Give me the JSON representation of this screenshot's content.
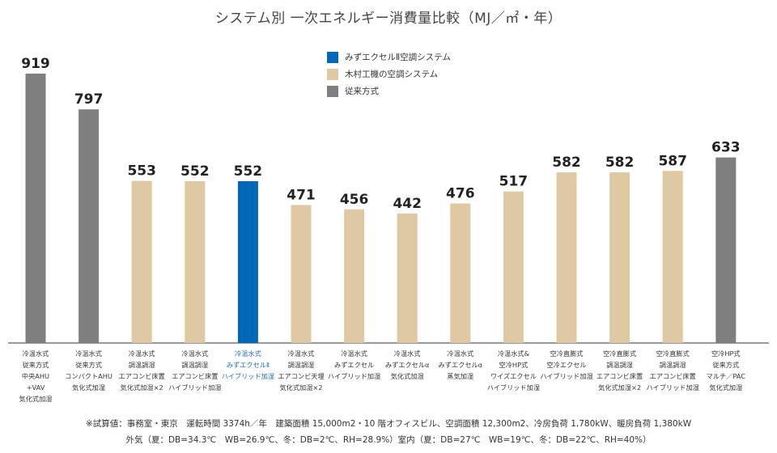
{
  "colors": {
    "highlight": "#0068b7",
    "kimura": "#dfc9a2",
    "conventional": "#7f7f7f",
    "axis": "#333333",
    "highlight_text": "#1a6fb8"
  },
  "legend": [
    {
      "label": "みずエクセルⅡ空調システム",
      "color": "#0068b7"
    },
    {
      "label": "木村工機の空調システム",
      "color": "#dfc9a2"
    },
    {
      "label": "従来方式",
      "color": "#7f7f7f"
    }
  ],
  "notes": [
    "※試算値：事務室・東京　運転時間 3374h／年　建築面積 15,000m2・10 階オフィスビル、空調面積 12,300m2、冷房負荷 1,780kW、暖房負荷 1,380kW",
    "外気（夏：DB=34.3℃　WB=26.9℃、冬：DB=2℃、RH=28.9%）室内（夏：DB=27℃　WB=19℃、冬：DB=22℃、RH=40%）"
  ],
  "chart_data": {
    "type": "bar",
    "title": "システム別 一次エネルギー消費量比較（MJ／㎡・年）",
    "ylim": [
      0,
      1000
    ],
    "grid": false,
    "legend_position": "top-center",
    "bars": [
      {
        "value": 919,
        "group": "conventional",
        "label": [
          "冷温水式",
          "従来方式",
          "中央AHU",
          "+VAV",
          "気化式加湿"
        ]
      },
      {
        "value": 797,
        "group": "conventional",
        "label": [
          "冷温水式",
          "従来方式",
          "コンパクトAHU",
          "気化式加湿"
        ]
      },
      {
        "value": 553,
        "group": "kimura",
        "label": [
          "冷温水式",
          "調温調湿",
          "エアコンビ床置",
          "気化式加湿×2"
        ]
      },
      {
        "value": 552,
        "group": "kimura",
        "label": [
          "冷温水式",
          "調温調湿",
          "エアコンビ床置",
          "ハイブリッド加湿"
        ]
      },
      {
        "value": 552,
        "group": "highlight",
        "label": [
          "冷温水式",
          "みずエクセルⅡ",
          "ハイブリッド加湿"
        ]
      },
      {
        "value": 471,
        "group": "kimura",
        "label": [
          "冷温水式",
          "調温調湿",
          "エアコンビ天埋",
          "気化式加湿×2"
        ]
      },
      {
        "value": 456,
        "group": "kimura",
        "label": [
          "冷温水式",
          "みずエクセル",
          "ハイブリッド加湿"
        ]
      },
      {
        "value": 442,
        "group": "kimura",
        "label": [
          "冷温水式",
          "みずエクセルα",
          "気化式加湿"
        ]
      },
      {
        "value": 476,
        "group": "kimura",
        "label": [
          "冷温水式",
          "みずエクセルα",
          "蒸気加湿"
        ]
      },
      {
        "value": 517,
        "group": "kimura",
        "label": [
          "冷温水式&",
          "空冷HP式",
          "ワイズエクセル",
          "ハイブリッド加湿"
        ]
      },
      {
        "value": 582,
        "group": "kimura",
        "label": [
          "空冷直膨式",
          "空冷エクセル",
          "ハイブリッド加湿"
        ]
      },
      {
        "value": 582,
        "group": "kimura",
        "label": [
          "空冷直膨式",
          "調温調湿",
          "エアコンビ床置",
          "気化式加湿×2"
        ]
      },
      {
        "value": 587,
        "group": "kimura",
        "label": [
          "空冷直膨式",
          "調温調湿",
          "エアコンビ床置",
          "ハイブリッド加湿"
        ]
      },
      {
        "value": 633,
        "group": "conventional",
        "label": [
          "空冷HP式",
          "従来方式",
          "マルチ／PAC",
          "気化式加湿"
        ]
      }
    ]
  }
}
